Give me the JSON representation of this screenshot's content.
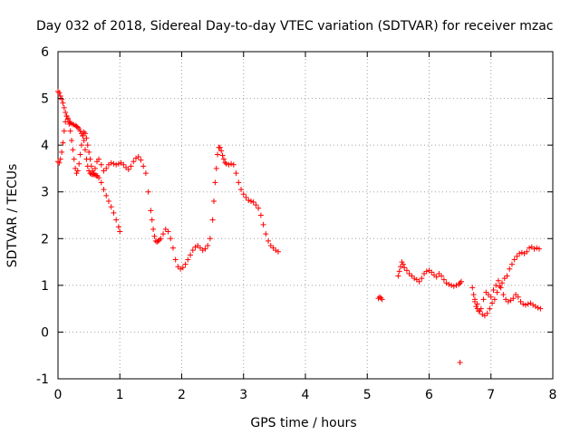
{
  "chart_data": {
    "type": "scatter",
    "title": "Day 032 of 2018, Sidereal Day-to-day VTEC variation (SDTVAR) for receiver mzac",
    "xlabel": "GPS time / hours",
    "ylabel": "SDTVAR / TECUs",
    "xlim": [
      0,
      8
    ],
    "ylim": [
      -1,
      6
    ],
    "xticks": [
      "0",
      "1",
      "2",
      "3",
      "4",
      "5",
      "6",
      "7",
      "8"
    ],
    "yticks": [
      "-1",
      "0",
      "1",
      "2",
      "3",
      "4",
      "5",
      "6"
    ],
    "grid": true,
    "marker": "+",
    "color": "#ff0000",
    "series": [
      {
        "name": "SDTVAR",
        "x": [
          0.0,
          0.02,
          0.04,
          0.06,
          0.08,
          0.1,
          0.12,
          0.14,
          0.16,
          0.18,
          0.2,
          0.22,
          0.25,
          0.28,
          0.3,
          0.32,
          0.34,
          0.36,
          0.38,
          0.4,
          0.42,
          0.44,
          0.46,
          0.48,
          0.5,
          0.52,
          0.54,
          0.56,
          0.58,
          0.6,
          0.63,
          0.66,
          0.7,
          0.74,
          0.78,
          0.82,
          0.86,
          0.9,
          0.94,
          0.98,
          1.02,
          1.06,
          1.1,
          1.14,
          1.18,
          1.22,
          1.26,
          1.3,
          1.34,
          1.38,
          1.42,
          1.46,
          1.5,
          1.52,
          1.54,
          1.56,
          1.58,
          1.6,
          1.62,
          1.64,
          1.66,
          1.7,
          1.74,
          1.78,
          1.82,
          1.86,
          1.9,
          1.94,
          1.98,
          2.02,
          2.06,
          2.1,
          2.14,
          2.18,
          2.22,
          2.26,
          2.3,
          2.34,
          2.38,
          2.42,
          2.46,
          2.5,
          2.52,
          2.54,
          2.56,
          2.58,
          2.6,
          2.62,
          2.64,
          2.66,
          2.68,
          2.7,
          2.72,
          2.76,
          2.8,
          2.84,
          2.88,
          2.92,
          2.96,
          3.0,
          3.04,
          3.08,
          3.12,
          3.16,
          3.2,
          3.24,
          3.28,
          3.32,
          3.36,
          3.4,
          3.44,
          3.48,
          3.52,
          3.56,
          0.0,
          0.02,
          0.04,
          0.06,
          0.08,
          0.1,
          0.12,
          0.14,
          0.16,
          0.18,
          0.2,
          0.22,
          0.24,
          0.26,
          0.28,
          0.3,
          0.32,
          0.34,
          0.36,
          0.38,
          0.4,
          0.42,
          0.44,
          0.46,
          0.48,
          0.5,
          0.52,
          0.54,
          0.56,
          0.58,
          0.6,
          0.62,
          0.64,
          0.66,
          0.7,
          0.74,
          0.78,
          0.82,
          0.86,
          0.9,
          0.94,
          0.98,
          1.0,
          5.18,
          5.2,
          5.22,
          5.24,
          5.5,
          5.52,
          5.54,
          5.56,
          5.58,
          5.6,
          5.64,
          5.68,
          5.72,
          5.76,
          5.8,
          5.84,
          5.88,
          5.92,
          5.96,
          6.0,
          6.04,
          6.08,
          6.12,
          6.16,
          6.2,
          6.24,
          6.28,
          6.32,
          6.36,
          6.4,
          6.44,
          6.48,
          6.5,
          6.52,
          6.5,
          6.7,
          6.72,
          6.74,
          6.76,
          6.78,
          6.8,
          6.84,
          6.88,
          6.92,
          6.96,
          7.0,
          7.04,
          7.08,
          7.12,
          7.16,
          7.2,
          7.24,
          7.28,
          7.32,
          7.36,
          7.4,
          7.44,
          7.48,
          7.52,
          7.56,
          7.6,
          7.64,
          7.68,
          7.72,
          7.76,
          7.8,
          6.74,
          6.78,
          6.82,
          6.86,
          6.9,
          6.94,
          6.98,
          7.02,
          7.06,
          7.1,
          7.14,
          7.18,
          7.22,
          7.26,
          7.3,
          7.34,
          7.38,
          7.42,
          7.46,
          7.5,
          7.54,
          7.58,
          7.62,
          7.66,
          7.7,
          7.74,
          7.78
        ],
        "y": [
          5.15,
          5.12,
          5.05,
          4.98,
          4.9,
          4.8,
          4.7,
          4.62,
          4.55,
          4.5,
          4.48,
          4.46,
          4.44,
          4.42,
          4.4,
          4.38,
          4.35,
          4.3,
          4.25,
          4.2,
          4.1,
          3.9,
          3.7,
          3.55,
          3.45,
          3.4,
          3.38,
          3.37,
          3.4,
          3.5,
          3.65,
          3.7,
          3.58,
          3.45,
          3.5,
          3.58,
          3.62,
          3.6,
          3.58,
          3.6,
          3.62,
          3.58,
          3.52,
          3.48,
          3.55,
          3.65,
          3.72,
          3.75,
          3.68,
          3.55,
          3.4,
          3.0,
          2.6,
          2.4,
          2.2,
          2.05,
          1.95,
          1.93,
          1.95,
          1.97,
          2.0,
          2.1,
          2.2,
          2.15,
          2.0,
          1.8,
          1.55,
          1.4,
          1.35,
          1.38,
          1.45,
          1.55,
          1.65,
          1.75,
          1.82,
          1.85,
          1.8,
          1.75,
          1.78,
          1.85,
          2.0,
          2.4,
          2.8,
          3.2,
          3.5,
          3.8,
          3.95,
          3.95,
          3.88,
          3.78,
          3.7,
          3.63,
          3.6,
          3.58,
          3.6,
          3.58,
          3.4,
          3.2,
          3.05,
          2.95,
          2.88,
          2.82,
          2.8,
          2.78,
          2.72,
          2.65,
          2.5,
          2.3,
          2.1,
          1.95,
          1.85,
          1.8,
          1.75,
          1.72,
          3.65,
          3.62,
          3.7,
          3.85,
          4.05,
          4.3,
          4.5,
          4.62,
          4.58,
          4.45,
          4.3,
          4.1,
          3.9,
          3.7,
          3.5,
          3.4,
          3.45,
          3.6,
          3.8,
          4.0,
          4.2,
          4.28,
          4.25,
          4.15,
          4.0,
          3.85,
          3.7,
          3.55,
          3.45,
          3.38,
          3.36,
          3.35,
          3.34,
          3.3,
          3.2,
          3.05,
          2.92,
          2.8,
          2.68,
          2.55,
          2.4,
          2.25,
          2.15,
          0.72,
          0.75,
          0.73,
          0.7,
          1.2,
          1.3,
          1.4,
          1.5,
          1.45,
          1.38,
          1.32,
          1.25,
          1.2,
          1.15,
          1.12,
          1.08,
          1.15,
          1.25,
          1.3,
          1.32,
          1.28,
          1.22,
          1.18,
          1.25,
          1.2,
          1.12,
          1.05,
          1.02,
          1.0,
          0.98,
          1.0,
          1.02,
          1.05,
          1.08,
          -0.65,
          0.95,
          0.8,
          0.65,
          0.55,
          0.5,
          0.45,
          0.5,
          0.7,
          0.85,
          0.8,
          0.75,
          0.9,
          1.0,
          1.1,
          0.95,
          0.8,
          0.7,
          0.65,
          0.68,
          0.72,
          0.8,
          0.75,
          0.65,
          0.6,
          0.58,
          0.6,
          0.62,
          0.58,
          0.55,
          0.52,
          0.5,
          0.7,
          0.6,
          0.45,
          0.38,
          0.35,
          0.4,
          0.5,
          0.62,
          0.7,
          0.85,
          0.98,
          1.05,
          1.15,
          1.2,
          1.35,
          1.45,
          1.55,
          1.62,
          1.68,
          1.7,
          1.68,
          1.72,
          1.8,
          1.82,
          1.78,
          1.8,
          1.78
        ]
      }
    ]
  }
}
